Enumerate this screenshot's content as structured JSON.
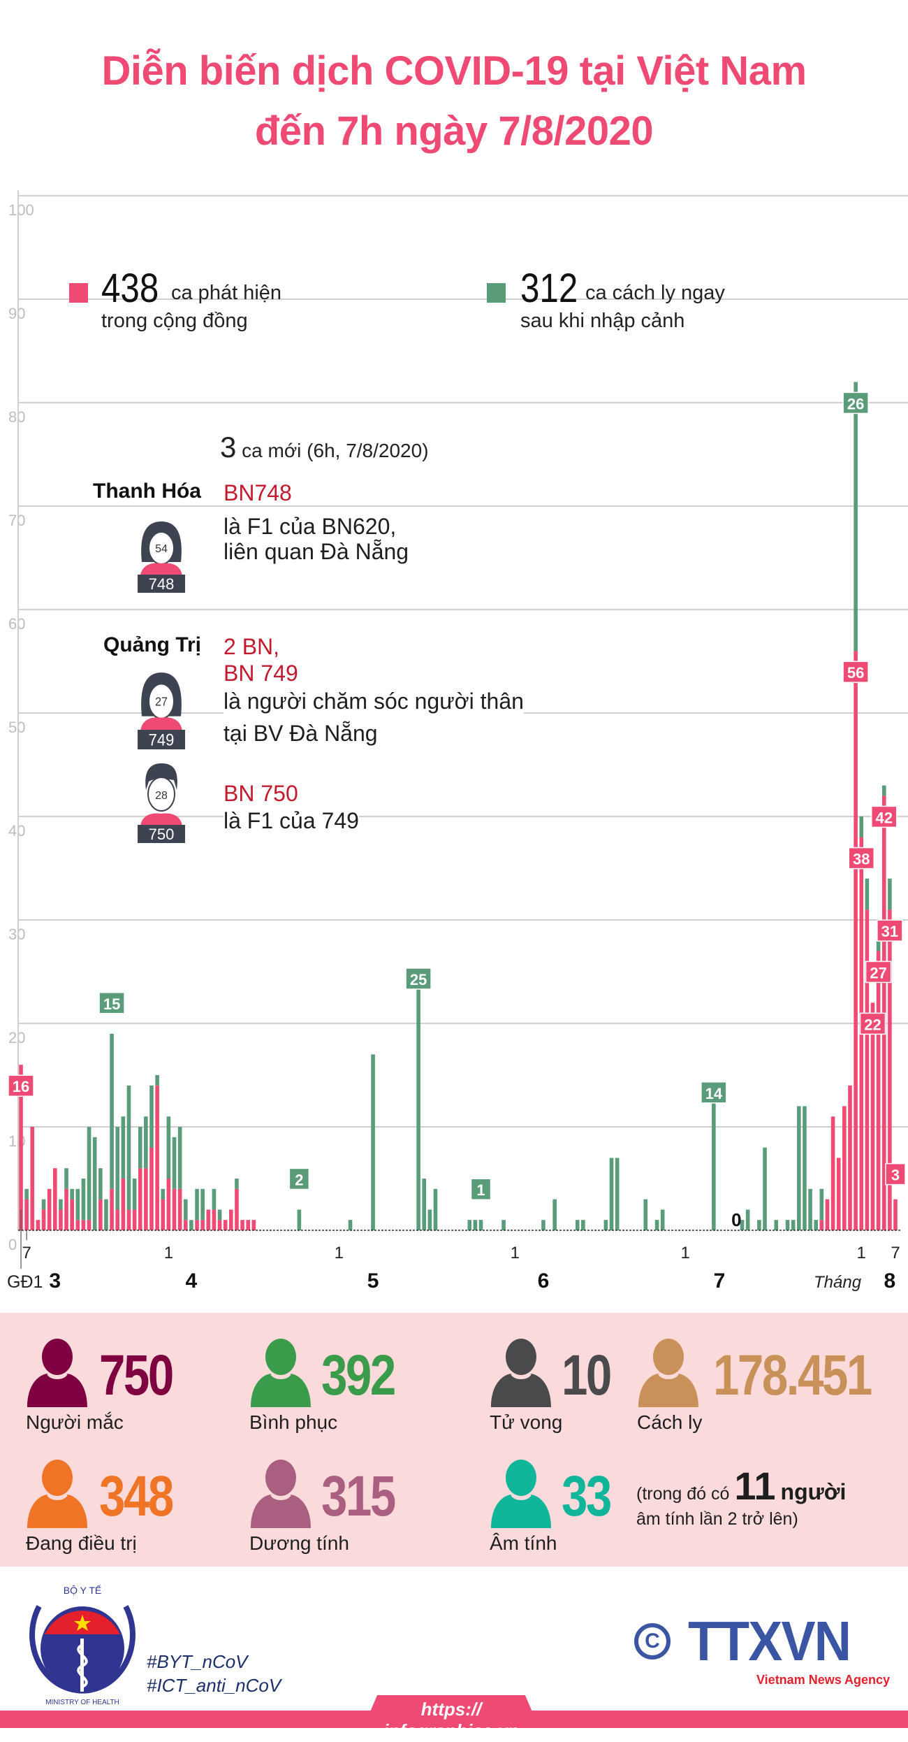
{
  "title": {
    "line1": "Diễn biến dịch COVID-19 tại Việt Nam",
    "line2": "đến 7h ngày 7/8/2020"
  },
  "legend": {
    "community": {
      "count": "438",
      "text1": "ca phát hiện",
      "text2": "trong cộng đồng",
      "color": "#ee4a74"
    },
    "imported": {
      "count": "312",
      "text1": "ca cách ly ngay",
      "text2": "sau khi nhập cảnh",
      "color": "#5a9b7a"
    }
  },
  "new_cases": {
    "count": "3",
    "text": "ca mới (6h, 7/8/2020)",
    "groups": [
      {
        "province": "Thanh Hóa",
        "patients": [
          {
            "id_label": "BN748",
            "desc": [
              "là F1 của BN620,",
              "liên quan Đà Nẵng"
            ],
            "age": "54",
            "number": "748",
            "gender": "female"
          }
        ]
      },
      {
        "province": "Quảng Trị",
        "count_label": "2 BN,",
        "patients": [
          {
            "id_label": "BN 749",
            "desc": [
              "là người chăm sóc người thân",
              "tại BV Đà Nẵng"
            ],
            "age": "27",
            "number": "749",
            "gender": "female"
          },
          {
            "id_label": "BN 750",
            "desc": [
              "là F1 của 749"
            ],
            "age": "28",
            "number": "750",
            "gender": "male"
          }
        ]
      }
    ]
  },
  "chart_data": {
    "type": "bar",
    "stacked": true,
    "ylim": [
      0,
      100
    ],
    "yticks": [
      "0",
      "10",
      "20",
      "30",
      "40",
      "50",
      "60",
      "70",
      "80",
      "90",
      "100"
    ],
    "grid": true,
    "x_tick_labels": [
      {
        "month": 3,
        "day": 7,
        "label": "7"
      },
      {
        "month": 4,
        "day": 1,
        "label": "1"
      },
      {
        "month": 5,
        "day": 1,
        "label": "1"
      },
      {
        "month": 6,
        "day": 1,
        "label": "1"
      },
      {
        "month": 7,
        "day": 1,
        "label": "1"
      },
      {
        "month": 8,
        "day": 1,
        "label": "1"
      },
      {
        "month": 8,
        "day": 7,
        "label": "7"
      }
    ],
    "month_labels": [
      "3",
      "4",
      "5",
      "6",
      "7",
      "8"
    ],
    "phase_label": "GĐ1",
    "month_word": "Tháng",
    "series_colors": {
      "community": "#ee4a74",
      "imported": "#5a9b7a"
    },
    "months": [
      {
        "month": 3,
        "first_day": 6,
        "community": [
          16,
          3,
          10,
          1,
          2,
          4,
          6,
          2,
          4,
          3,
          1,
          1,
          1,
          0,
          3,
          0,
          4,
          2,
          5,
          2,
          2,
          6,
          6,
          8,
          14,
          3
        ],
        "imported": [
          0,
          1,
          0,
          0,
          1,
          0,
          0,
          1,
          2,
          1,
          3,
          4,
          9,
          9,
          3,
          3,
          15,
          8,
          6,
          12,
          3,
          4,
          5,
          6,
          1,
          1
        ]
      },
      {
        "month": 4,
        "first_day": 1,
        "community": [
          5,
          4,
          4,
          1,
          0,
          1,
          1,
          2,
          2,
          1,
          1,
          2,
          4,
          1,
          1,
          1,
          0,
          0,
          0,
          0,
          0,
          0,
          0,
          0,
          0,
          0,
          0,
          0,
          0,
          0
        ],
        "imported": [
          6,
          5,
          6,
          2,
          1,
          3,
          3,
          0,
          2,
          1,
          0,
          0,
          1,
          0,
          0,
          0,
          0,
          0,
          0,
          0,
          0,
          0,
          0,
          2,
          0,
          0,
          0,
          0,
          0,
          0
        ]
      },
      {
        "month": 5,
        "first_day": 1,
        "community": [
          0,
          0,
          0,
          0,
          0,
          0,
          0,
          0,
          0,
          0,
          0,
          0,
          0,
          0,
          0,
          0,
          0,
          0,
          0,
          0,
          0,
          0,
          0,
          0,
          0,
          0,
          0,
          0,
          0,
          0,
          0
        ],
        "imported": [
          0,
          0,
          1,
          0,
          0,
          0,
          17,
          0,
          0,
          0,
          0,
          0,
          0,
          0,
          25,
          5,
          2,
          4,
          0,
          0,
          0,
          0,
          0,
          1,
          1,
          1,
          0,
          0,
          0,
          1,
          0
        ]
      },
      {
        "month": 6,
        "first_day": 1,
        "community": [
          0,
          0,
          0,
          0,
          0,
          0,
          0,
          0,
          0,
          0,
          0,
          0,
          0,
          0,
          0,
          0,
          0,
          0,
          0,
          0,
          0,
          0,
          0,
          0,
          0,
          0,
          0,
          0,
          0,
          0
        ],
        "imported": [
          0,
          0,
          0,
          0,
          0,
          1,
          0,
          3,
          0,
          0,
          0,
          1,
          1,
          0,
          0,
          0,
          1,
          7,
          7,
          0,
          0,
          0,
          0,
          3,
          0,
          1,
          2,
          0,
          0,
          0
        ]
      },
      {
        "month": 7,
        "first_day": 1,
        "community": [
          0,
          0,
          0,
          0,
          0,
          0,
          0,
          0,
          0,
          0,
          0,
          0,
          0,
          0,
          0,
          0,
          0,
          0,
          0,
          0,
          0,
          0,
          0,
          0,
          1,
          3,
          11,
          7,
          12,
          14,
          56
        ],
        "imported": [
          0,
          0,
          0,
          0,
          0,
          14,
          0,
          0,
          0,
          0,
          1,
          2,
          0,
          1,
          8,
          0,
          1,
          0,
          1,
          1,
          12,
          12,
          4,
          1,
          3,
          0,
          0,
          0,
          0,
          0,
          26
        ]
      },
      {
        "month": 8,
        "first_day": 1,
        "community": [
          38,
          31,
          22,
          27,
          42,
          31,
          3
        ],
        "imported": [
          2,
          3,
          0,
          1,
          1,
          3,
          0
        ]
      }
    ],
    "annotations": [
      {
        "month": 3,
        "day": 6,
        "series": "community",
        "label": "16"
      },
      {
        "month": 3,
        "day": 22,
        "series": "imported",
        "label": "15"
      },
      {
        "month": 4,
        "day": 24,
        "series": "imported",
        "label": "2"
      },
      {
        "month": 5,
        "day": 15,
        "series": "imported",
        "label": "25"
      },
      {
        "month": 5,
        "day": 26,
        "series": "imported",
        "label": "1"
      },
      {
        "month": 7,
        "day": 6,
        "series": "imported",
        "label": "14"
      },
      {
        "month": 7,
        "day": 10,
        "series": "none",
        "label": "0"
      },
      {
        "month": 7,
        "day": 31,
        "series": "imported",
        "label": "26"
      },
      {
        "month": 7,
        "day": 31,
        "series": "community",
        "label": "56"
      },
      {
        "month": 8,
        "day": 1,
        "series": "community",
        "label": "38"
      },
      {
        "month": 8,
        "day": 3,
        "series": "community",
        "label": "22"
      },
      {
        "month": 8,
        "day": 4,
        "series": "community",
        "label": "27"
      },
      {
        "month": 8,
        "day": 5,
        "series": "community",
        "label": "42"
      },
      {
        "month": 8,
        "day": 6,
        "series": "community",
        "label": "31"
      },
      {
        "month": 8,
        "day": 7,
        "series": "community",
        "label": "3"
      }
    ]
  },
  "stats": [
    {
      "value": "750",
      "label": "Người mắc",
      "color": "#7f0040",
      "icon": "person-icon"
    },
    {
      "value": "392",
      "label": "Bình phục",
      "color": "#3a9c4a",
      "icon": "person-icon"
    },
    {
      "value": "10",
      "label": "Tử vong",
      "color": "#4a4a4d",
      "icon": "person-icon"
    },
    {
      "value": "178.451",
      "label": "Cách ly",
      "color": "#c8915a",
      "icon": "person-icon"
    },
    {
      "value": "348",
      "label": "Đang điều trị",
      "color": "#f07425",
      "icon": "person-icon"
    },
    {
      "value": "315",
      "label": "Dương tính",
      "color": "#ab5f80",
      "icon": "person-icon"
    },
    {
      "value": "33",
      "label": "Âm tính",
      "color": "#10b59a",
      "icon": "person-icon"
    }
  ],
  "negative_note": {
    "pre": "(trong đó có",
    "number": "11",
    "post": "người",
    "line2": "âm tính lần 2 trở lên)"
  },
  "footer": {
    "logo_text_top": "BỘ Y TẾ",
    "logo_text_bottom": "MINISTRY OF HEALTH",
    "hashtags": [
      "#BYT_nCoV",
      "#ICT_anti_nCoV"
    ],
    "agency_logo": "TTXVN",
    "agency_sub": "Vietnam News Agency",
    "copyright": "©",
    "url": "https:// infographics.vn"
  }
}
